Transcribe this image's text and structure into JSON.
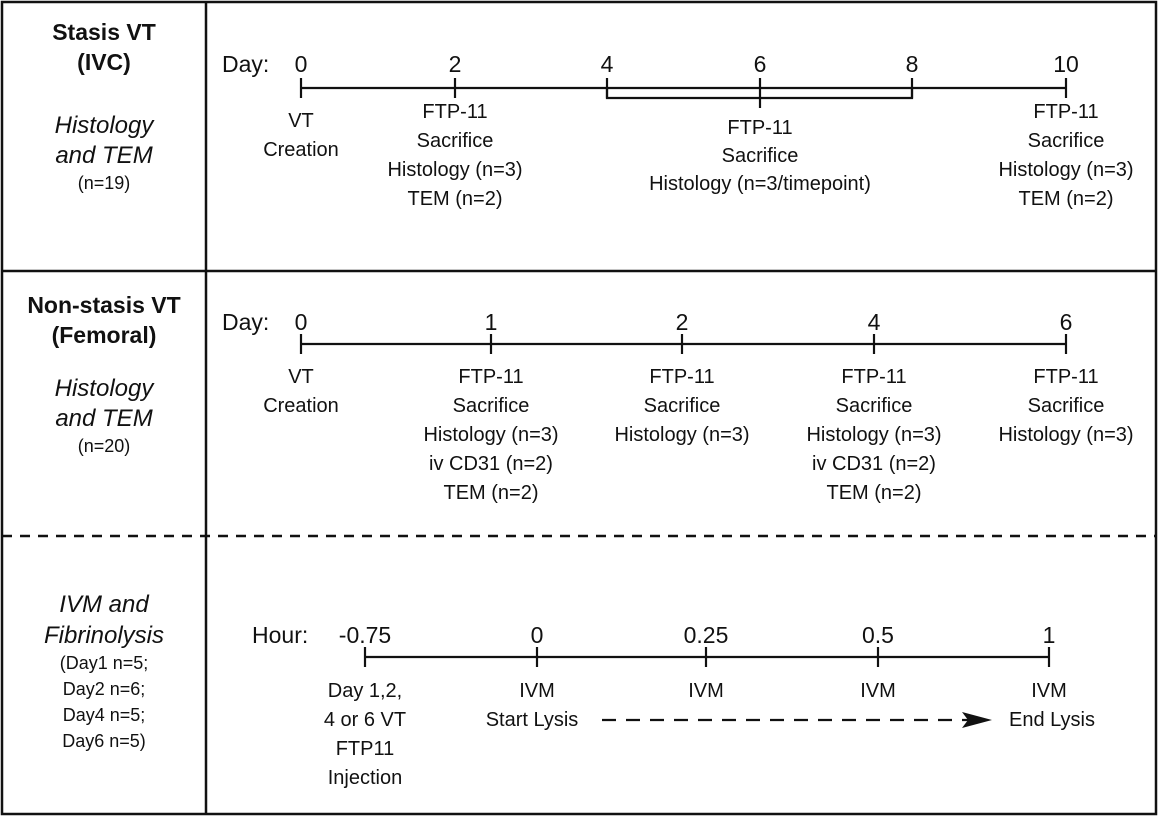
{
  "sections": {
    "stasis": {
      "title_lines": [
        "Stasis VT",
        "(IVC)"
      ],
      "subtitle_lines": [
        "Histology",
        "and TEM"
      ],
      "n": "(n=19)",
      "axis_label": "Day:",
      "ticks": [
        "0",
        "2",
        "4",
        "6",
        "8",
        "10"
      ],
      "events": {
        "d0": [
          "VT",
          "Creation"
        ],
        "d2": [
          "FTP-11",
          "Sacrifice",
          "Histology (n=3)",
          "TEM (n=2)"
        ],
        "d4_8": [
          "FTP-11",
          "Sacrifice",
          "Histology (n=3/timepoint)"
        ],
        "d10": [
          "FTP-11",
          "Sacrifice",
          "Histology (n=3)",
          "TEM (n=2)"
        ]
      }
    },
    "nonstasis": {
      "title_lines": [
        "Non-stasis VT",
        "(Femoral)"
      ],
      "subtitle_lines": [
        "Histology",
        "and TEM"
      ],
      "n": "(n=20)",
      "axis_label": "Day:",
      "ticks": [
        "0",
        "1",
        "2",
        "4",
        "6"
      ],
      "events": {
        "d0": [
          "VT",
          "Creation"
        ],
        "d1": [
          "FTP-11",
          "Sacrifice",
          "Histology (n=3)",
          "iv CD31 (n=2)",
          "TEM (n=2)"
        ],
        "d2": [
          "FTP-11",
          "Sacrifice",
          "Histology (n=3)"
        ],
        "d4": [
          "FTP-11",
          "Sacrifice",
          "Histology (n=3)",
          "iv CD31 (n=2)",
          "TEM (n=2)"
        ],
        "d6": [
          "FTP-11",
          "Sacrifice",
          "Histology (n=3)"
        ]
      }
    },
    "ivm": {
      "title_lines": [
        "IVM and",
        "Fibrinolysis"
      ],
      "n_lines": [
        "(Day1 n=5;",
        "Day2 n=6;",
        "Day4 n=5;",
        "Day6 n=5)"
      ],
      "axis_label": "Hour:",
      "ticks": [
        "-0.75",
        "0",
        "0.25",
        "0.5",
        "1"
      ],
      "events": {
        "h_075": [
          "Day 1,2,",
          "4 or 6 VT",
          "FTP11",
          "Injection"
        ],
        "h0": [
          "IVM",
          "Start Lysis"
        ],
        "h025": [
          "IVM"
        ],
        "h05": [
          "IVM"
        ],
        "h1": [
          "IVM",
          "End Lysis"
        ]
      }
    }
  }
}
